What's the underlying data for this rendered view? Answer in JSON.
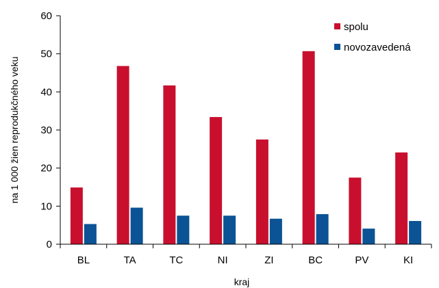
{
  "chart_data": {
    "type": "bar",
    "categories": [
      "BL",
      "TA",
      "TC",
      "NI",
      "ZI",
      "BC",
      "PV",
      "KI"
    ],
    "series": [
      {
        "name": "spolu",
        "color": "#c8102e",
        "values": [
          14.9,
          46.8,
          41.7,
          33.4,
          27.5,
          50.7,
          17.5,
          24.1
        ]
      },
      {
        "name": "novozavedená",
        "color": "#0b5394",
        "values": [
          5.3,
          9.6,
          7.5,
          7.5,
          6.7,
          7.9,
          4.1,
          6.1
        ]
      }
    ],
    "xlabel": "kraj",
    "ylabel": "na 1 000 žien reprodukčného veku",
    "ylim": [
      0,
      60
    ],
    "yticks": [
      0,
      10,
      20,
      30,
      40,
      50,
      60
    ],
    "grid": false,
    "legend": "top-right"
  }
}
